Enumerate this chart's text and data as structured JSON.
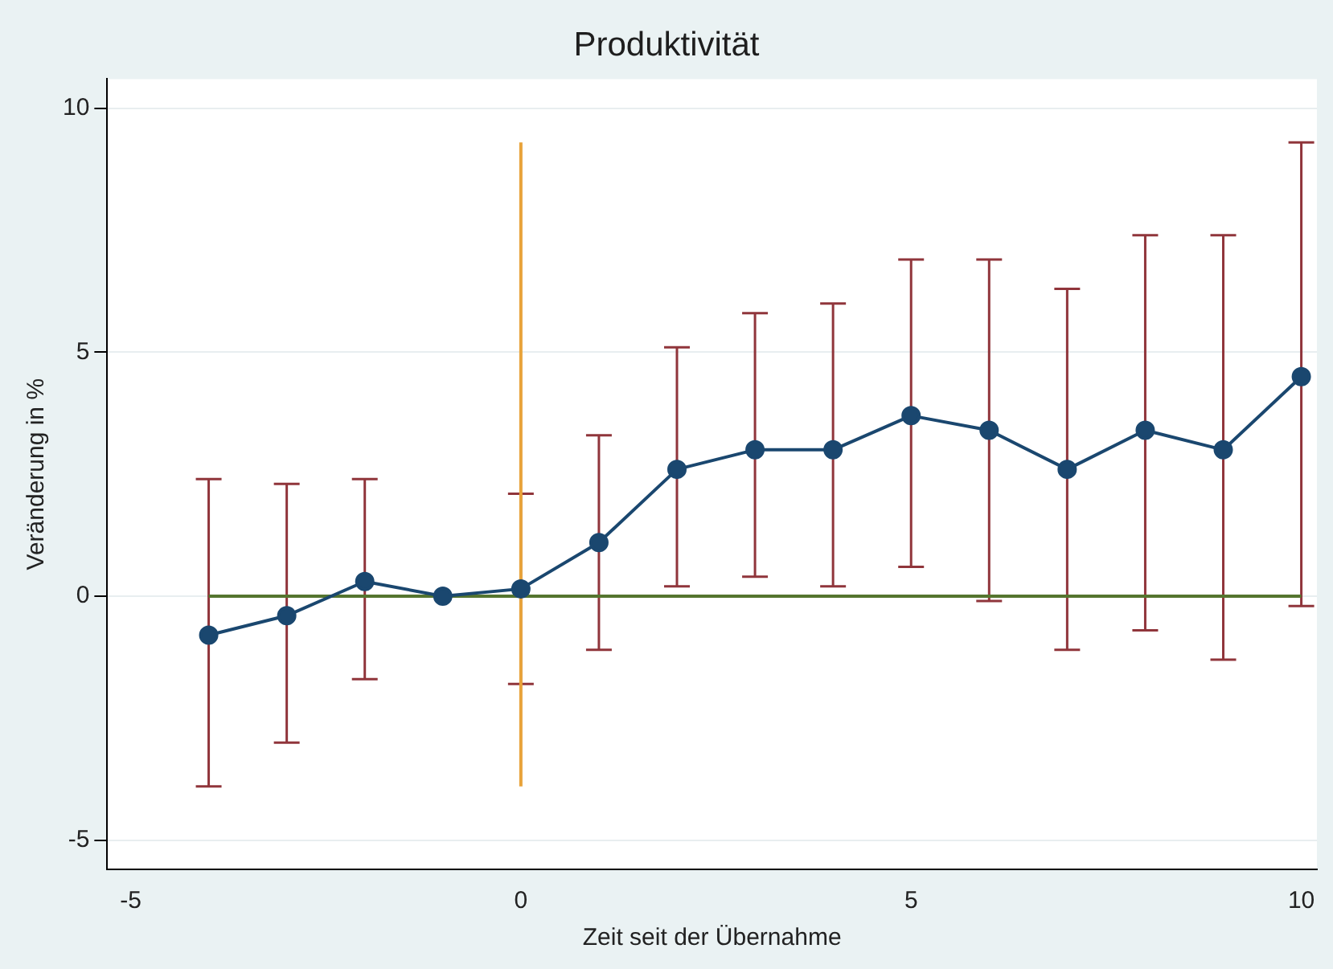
{
  "chart_data": {
    "type": "line",
    "title": "Produktivität",
    "xlabel": "Zeit seit der Übernahme",
    "ylabel": "Veränderung in %",
    "xlim": [
      -5.3,
      10.2
    ],
    "xticks": [
      -5,
      0,
      5,
      10
    ],
    "ylim": [
      -5.6,
      10.6
    ],
    "yticks": [
      -5,
      0,
      5,
      10
    ],
    "grid": "y",
    "legend": false,
    "series": [
      {
        "color": "#55752f",
        "x": [
          -4,
          10
        ],
        "values": [
          0,
          0
        ],
        "marker": "none"
      },
      {
        "color": "#e8a33a",
        "x": [
          0,
          0
        ],
        "values": [
          -3.9,
          9.3
        ],
        "marker": "none"
      },
      {
        "color": "#1a476f",
        "marker": "circle",
        "x": [
          -4,
          -3,
          -2,
          -1,
          0,
          1,
          2,
          3,
          4,
          5,
          6,
          7,
          8,
          9,
          10
        ],
        "values": [
          -0.8,
          -0.4,
          0.3,
          0,
          0.15,
          1.1,
          2.6,
          3.0,
          3.0,
          3.7,
          3.4,
          2.6,
          3.4,
          3.0,
          4.5
        ],
        "errors": [
          [
            -3.9,
            2.4
          ],
          [
            -3.0,
            2.3
          ],
          [
            -1.7,
            2.4
          ],
          null,
          [
            -1.8,
            2.1
          ],
          [
            -1.1,
            3.3
          ],
          [
            0.2,
            5.1
          ],
          [
            0.4,
            5.8
          ],
          [
            0.2,
            6.0
          ],
          [
            0.6,
            6.9
          ],
          [
            -0.1,
            6.9
          ],
          [
            -1.1,
            6.3
          ],
          [
            -0.7,
            7.4
          ],
          [
            -1.3,
            7.4
          ],
          [
            -0.2,
            9.3
          ]
        ]
      }
    ]
  }
}
